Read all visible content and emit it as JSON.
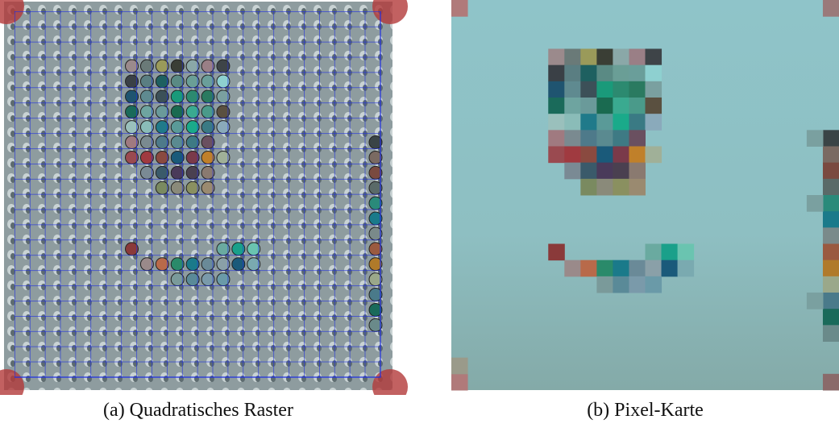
{
  "figure": {
    "subfigures": [
      {
        "caption": "(a) Quadratisches Raster"
      },
      {
        "caption": "(b) Pixel-Karte"
      }
    ]
  }
}
